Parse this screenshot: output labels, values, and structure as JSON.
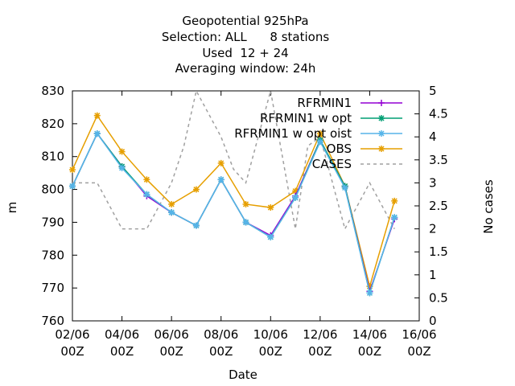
{
  "title_lines": [
    "Geopotential 925hPa",
    "Selection: ALL      8 stations",
    "Used  12 + 24",
    "Averaging window: 24h"
  ],
  "chart_data": {
    "type": "line",
    "xlabel": "Date",
    "ylabel": "m",
    "y2label": "No cases",
    "ylim": [
      760,
      830
    ],
    "y2lim": [
      0,
      5
    ],
    "x_ticks": [
      "02/06 00Z",
      "04/06 00Z",
      "06/06 00Z",
      "08/06 00Z",
      "10/06 00Z",
      "12/06 00Z",
      "14/06 00Z",
      "16/06 00Z"
    ],
    "y_ticks": [
      "760",
      "770",
      "780",
      "790",
      "800",
      "810",
      "820",
      "830"
    ],
    "y2_ticks": [
      "0",
      "0.5",
      "1",
      "1.5",
      "2",
      "2.5",
      "3",
      "3.5",
      "4",
      "4.5",
      "5"
    ],
    "x_days": [
      2,
      3,
      4,
      5,
      6,
      7,
      8,
      9,
      10,
      11,
      12,
      13,
      14,
      15
    ],
    "series": [
      {
        "name": "RFRMIN1",
        "color": "#9400d3",
        "marker": "plus",
        "values": [
          801,
          817,
          807,
          798,
          793,
          789,
          803,
          790,
          786,
          798,
          815,
          801,
          769,
          791
        ]
      },
      {
        "name": "RFRMIN1 w opt",
        "color": "#009e73",
        "marker": "star",
        "values": [
          801,
          817,
          807,
          798.5,
          793,
          789,
          803,
          790,
          785.5,
          797.5,
          815,
          801,
          768.5,
          791.5
        ]
      },
      {
        "name": "RFRMIN1 w opt oist",
        "color": "#56b4e9",
        "marker": "star",
        "values": [
          801,
          817,
          806.5,
          798.5,
          793,
          789,
          803,
          790,
          785.5,
          797.5,
          814.5,
          800.5,
          768.5,
          791.5
        ]
      },
      {
        "name": "OBS",
        "color": "#e69f00",
        "marker": "star",
        "values": [
          806,
          822.5,
          811.5,
          803,
          795.5,
          800,
          808,
          795.5,
          794.5,
          799.5,
          817,
          801,
          770.5,
          796.5
        ]
      }
    ],
    "cases": {
      "name": "CASES",
      "color": "#a0a0a0",
      "axis": "y2",
      "x": [
        2,
        3,
        4,
        5,
        6,
        6.5,
        7,
        8,
        8.5,
        9,
        10,
        11,
        11.5,
        12,
        12.5,
        13,
        13.5,
        14,
        15
      ],
      "values": [
        3,
        3,
        2,
        2,
        3,
        3.8,
        5,
        4,
        3.3,
        3,
        5,
        2,
        3.8,
        4,
        3,
        2,
        2.5,
        3,
        2
      ]
    },
    "legend_position": "top-right",
    "grid": false
  }
}
